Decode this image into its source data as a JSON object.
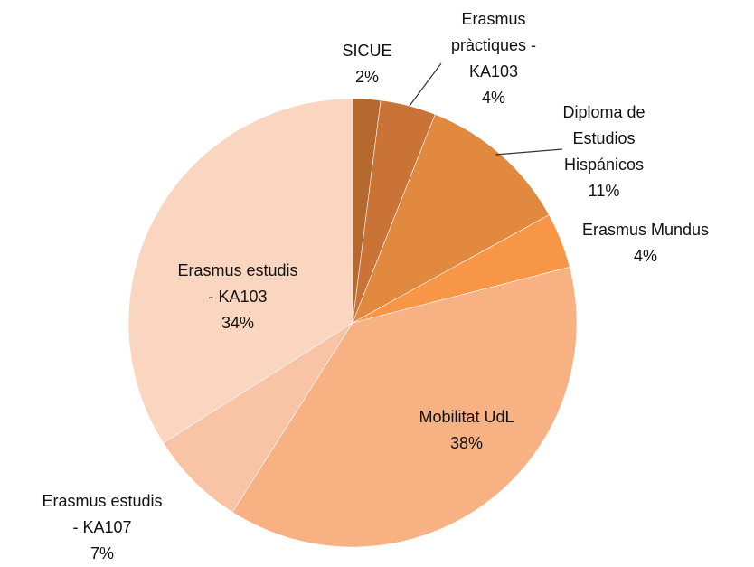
{
  "chart_data": {
    "type": "pie",
    "categories": [
      "SICUE",
      "Erasmus\npràctiques -\nKA103",
      "Diploma de\nEstudios\nHispánicos",
      "Erasmus Mundus",
      "Mobilitat UdL",
      "Erasmus estudis\n- KA107",
      "Erasmus estudis\n- KA103"
    ],
    "values": [
      2,
      4,
      11,
      4,
      38,
      7,
      34
    ],
    "value_labels": [
      "2%",
      "4%",
      "11%",
      "4%",
      "38%",
      "7%",
      "34%"
    ],
    "colors": [
      "#b5692e",
      "#c97436",
      "#e0893f",
      "#f79646",
      "#f7b183",
      "#f9c4a6",
      "#fad6c0"
    ]
  }
}
